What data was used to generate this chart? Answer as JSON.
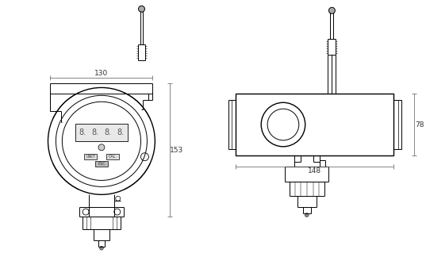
{
  "bg_color": "#ffffff",
  "line_color": "#000000",
  "lw": 0.7,
  "lw_thick": 1.0,
  "lw_dim": 0.5,
  "dim_130": "130",
  "dim_153": "153",
  "dim_148": "148",
  "dim_78": "78",
  "fig_width": 5.37,
  "fig_height": 3.24,
  "dpi": 100
}
